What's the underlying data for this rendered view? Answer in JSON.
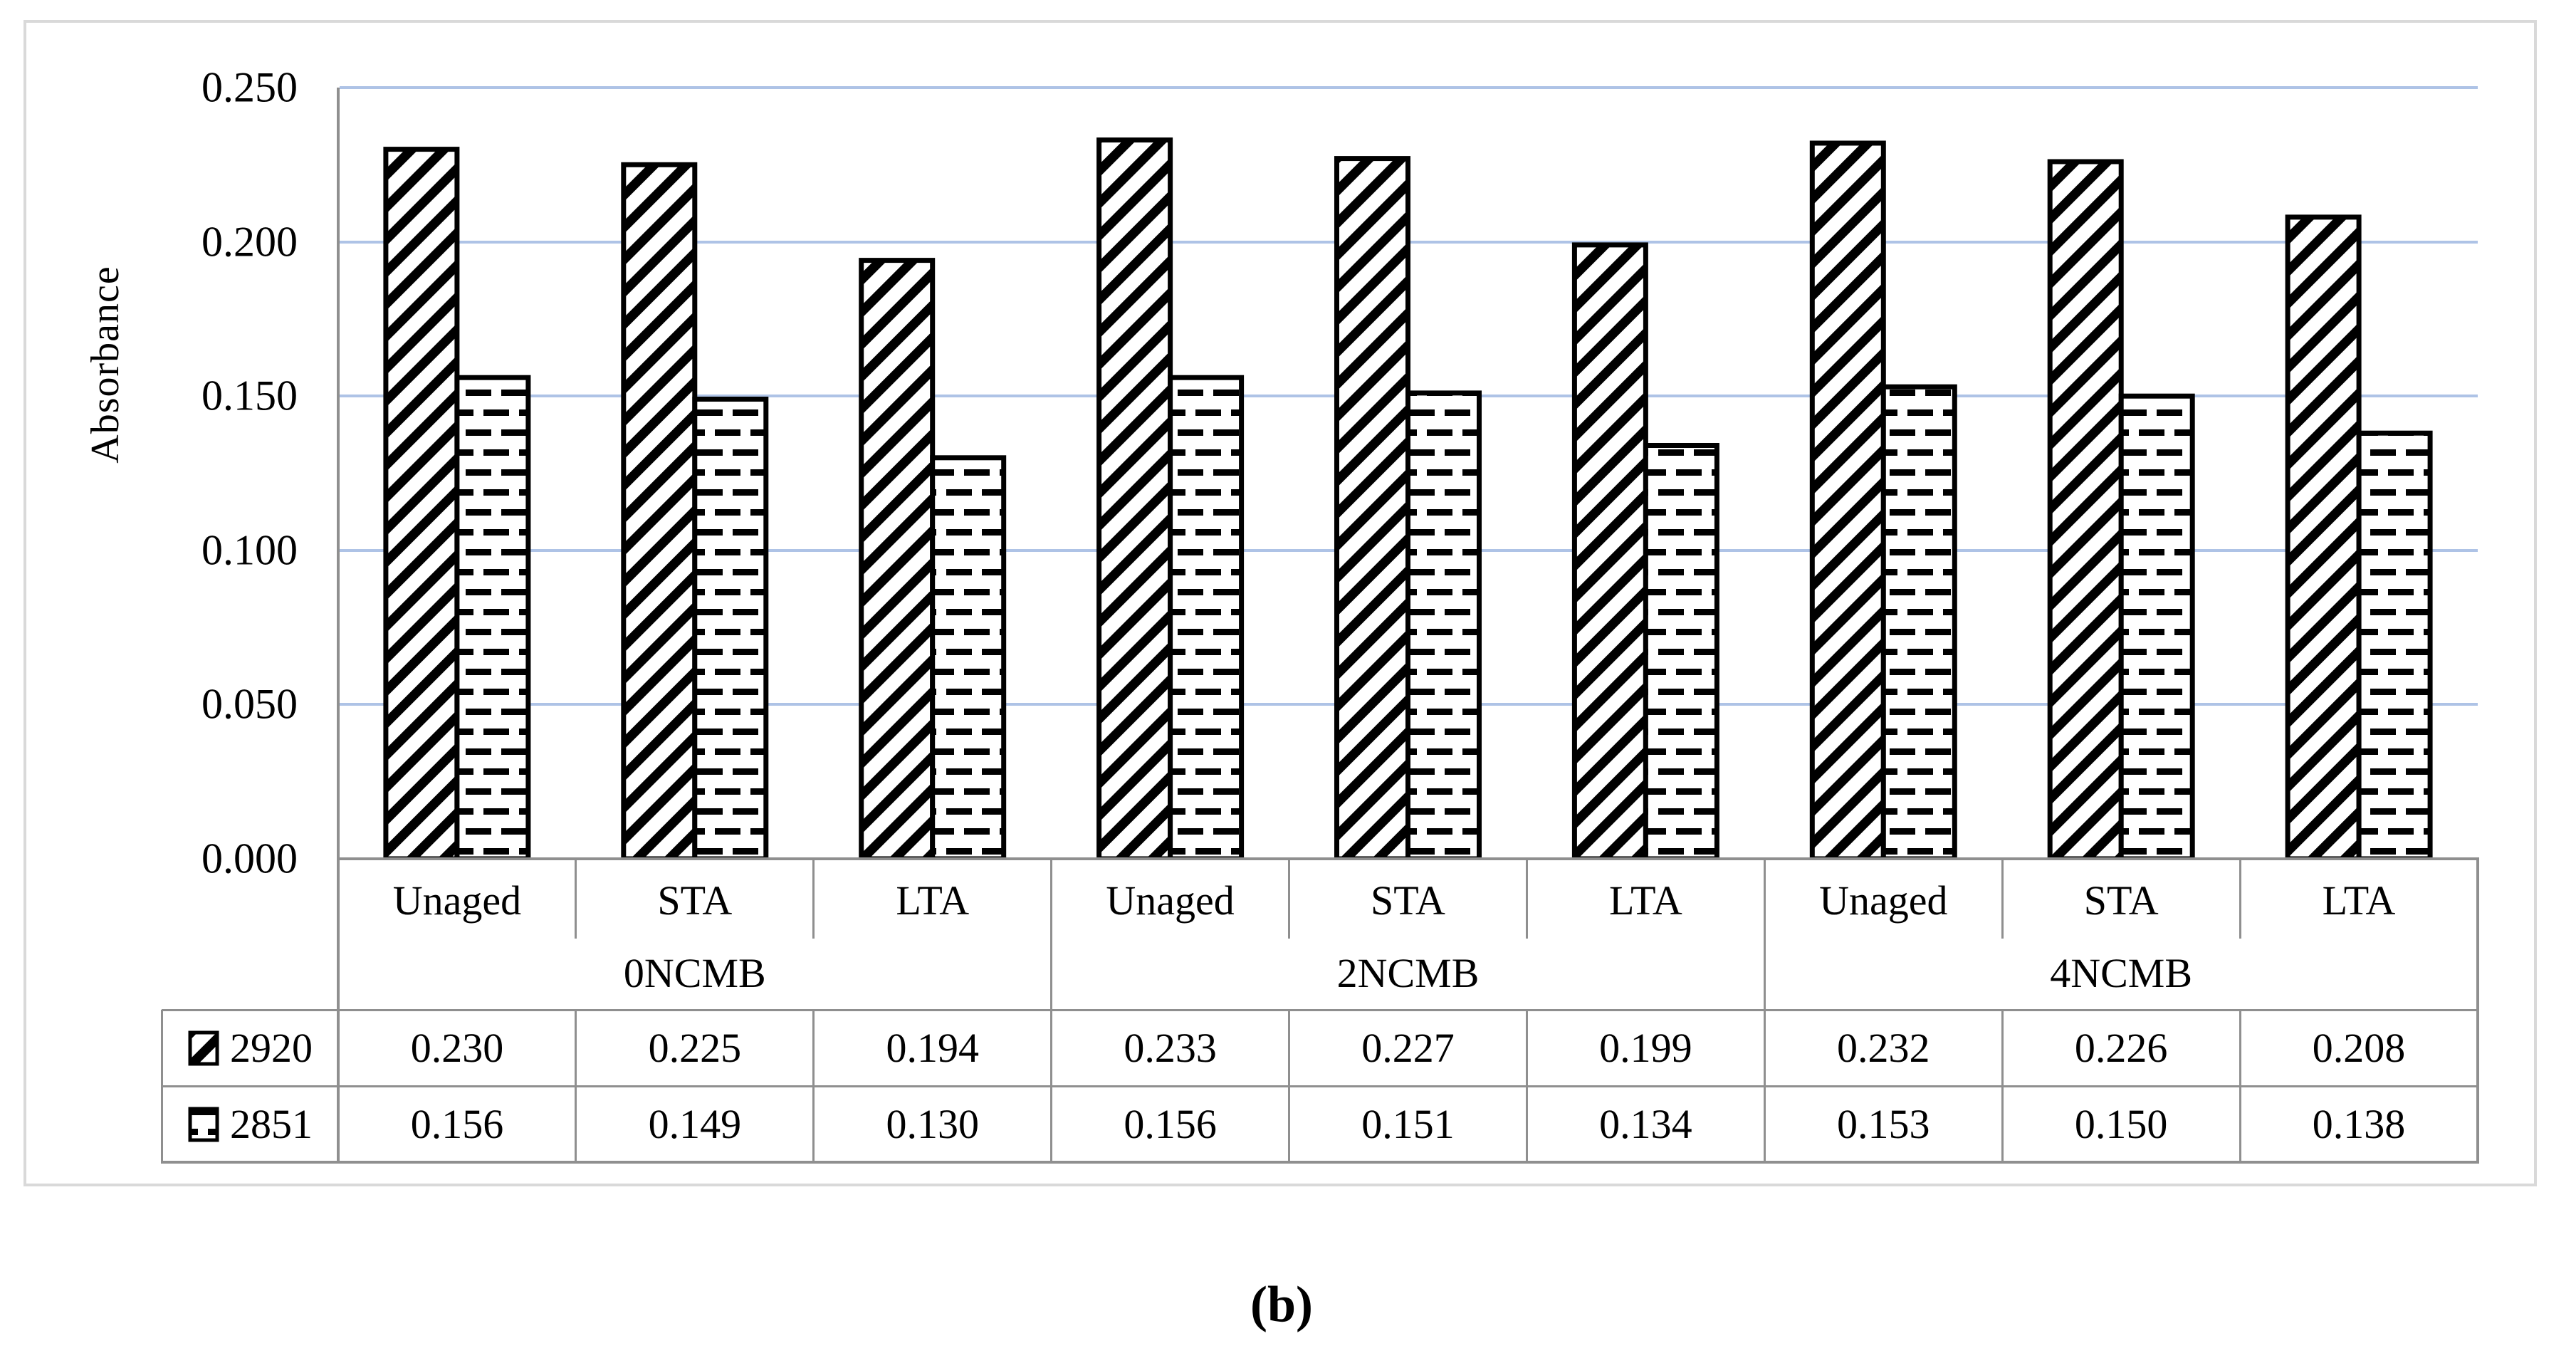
{
  "chart_data": {
    "type": "bar",
    "title": "",
    "xlabel": "",
    "ylabel": "Absorbance",
    "ylim": [
      0,
      0.25
    ],
    "ytick_labels": [
      "0.250",
      "0.200",
      "0.150",
      "0.100",
      "0.050",
      "0.000"
    ],
    "grid": "horizontal",
    "legend_position": "table-left-column",
    "groups": [
      "0NCMB",
      "2NCMB",
      "4NCMB"
    ],
    "categories": [
      "Unaged",
      "STA",
      "LTA",
      "Unaged",
      "STA",
      "LTA",
      "Unaged",
      "STA",
      "LTA"
    ],
    "series": [
      {
        "name": "2920",
        "pattern": "diagonal-hatch",
        "values": [
          0.23,
          0.225,
          0.194,
          0.233,
          0.227,
          0.199,
          0.232,
          0.226,
          0.208
        ],
        "value_labels": [
          "0.230",
          "0.225",
          "0.194",
          "0.233",
          "0.227",
          "0.199",
          "0.232",
          "0.226",
          "0.208"
        ]
      },
      {
        "name": "2851",
        "pattern": "horizontal-dashes",
        "values": [
          0.156,
          0.149,
          0.13,
          0.156,
          0.151,
          0.134,
          0.153,
          0.15,
          0.138
        ],
        "value_labels": [
          "0.156",
          "0.149",
          "0.130",
          "0.156",
          "0.151",
          "0.134",
          "0.153",
          "0.150",
          "0.138"
        ]
      }
    ],
    "caption": "(b)"
  },
  "colors": {
    "gridline_blue": "#aec3e6",
    "axis_gray": "#8f8f8f",
    "table_border_gray": "#8f8f8f",
    "figure_border_gray": "#d9d9d9",
    "bar_stroke": "#000000",
    "bar_fill": "#ffffff",
    "text": "#000000"
  }
}
